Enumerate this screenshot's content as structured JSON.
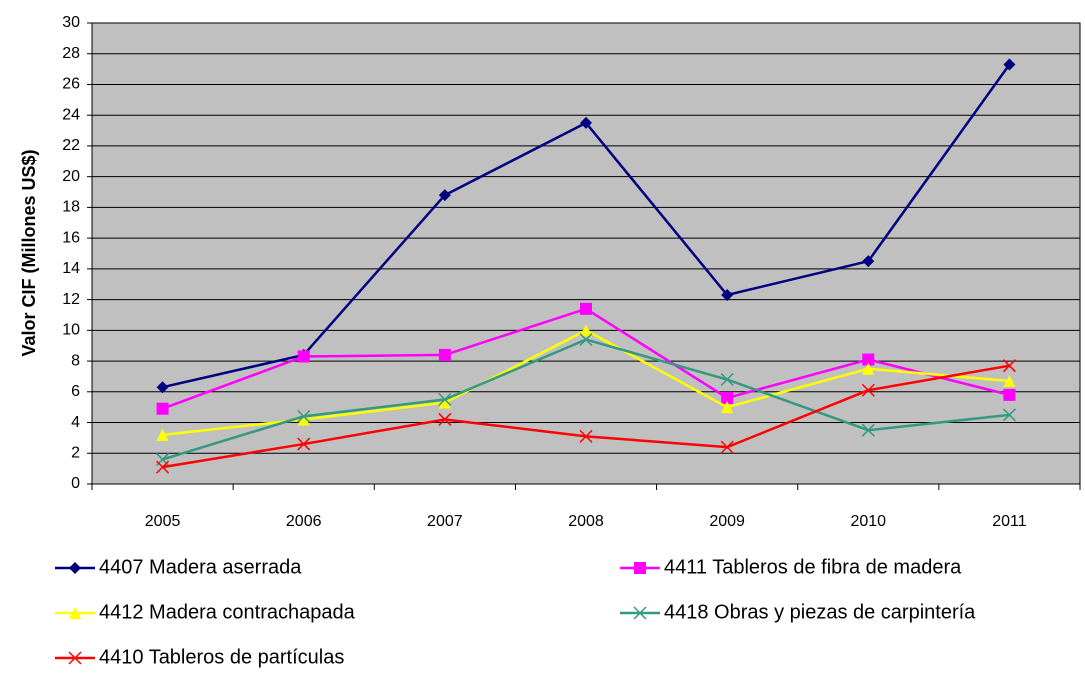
{
  "chart_data": {
    "type": "line",
    "ylabel": "Valor CIF (Millones US$)",
    "categories": [
      "2005",
      "2006",
      "2007",
      "2008",
      "2009",
      "2010",
      "2011"
    ],
    "series": [
      {
        "name": "4407 Madera aserrada",
        "color": "#000080",
        "marker": "diamond",
        "values": [
          6.3,
          8.4,
          18.8,
          23.5,
          12.3,
          14.5,
          27.3
        ]
      },
      {
        "name": "4411 Tableros de fibra de madera",
        "color": "#ff00ff",
        "marker": "square",
        "values": [
          4.9,
          8.3,
          8.4,
          11.4,
          5.6,
          8.1,
          5.8
        ]
      },
      {
        "name": "4412 Madera contrachapada",
        "color": "#ffff00",
        "marker": "triangle",
        "values": [
          3.2,
          4.2,
          5.3,
          10.0,
          5.0,
          7.5,
          6.7
        ]
      },
      {
        "name": "4418 Obras y piezas de carpintería",
        "color": "#339980",
        "marker": "x",
        "values": [
          1.6,
          4.4,
          5.5,
          9.4,
          6.8,
          3.5,
          4.5
        ]
      },
      {
        "name": "4410 Tableros de partículas",
        "color": "#ff0000",
        "marker": "x",
        "values": [
          1.1,
          2.6,
          4.2,
          3.1,
          2.4,
          6.1,
          7.7
        ]
      }
    ],
    "ylim": [
      0,
      30
    ],
    "yticks": [
      0,
      2,
      4,
      6,
      8,
      10,
      12,
      14,
      16,
      18,
      20,
      22,
      24,
      26,
      28,
      30
    ],
    "grid": true,
    "background": "#c0c0c0",
    "legend": "bottom"
  }
}
